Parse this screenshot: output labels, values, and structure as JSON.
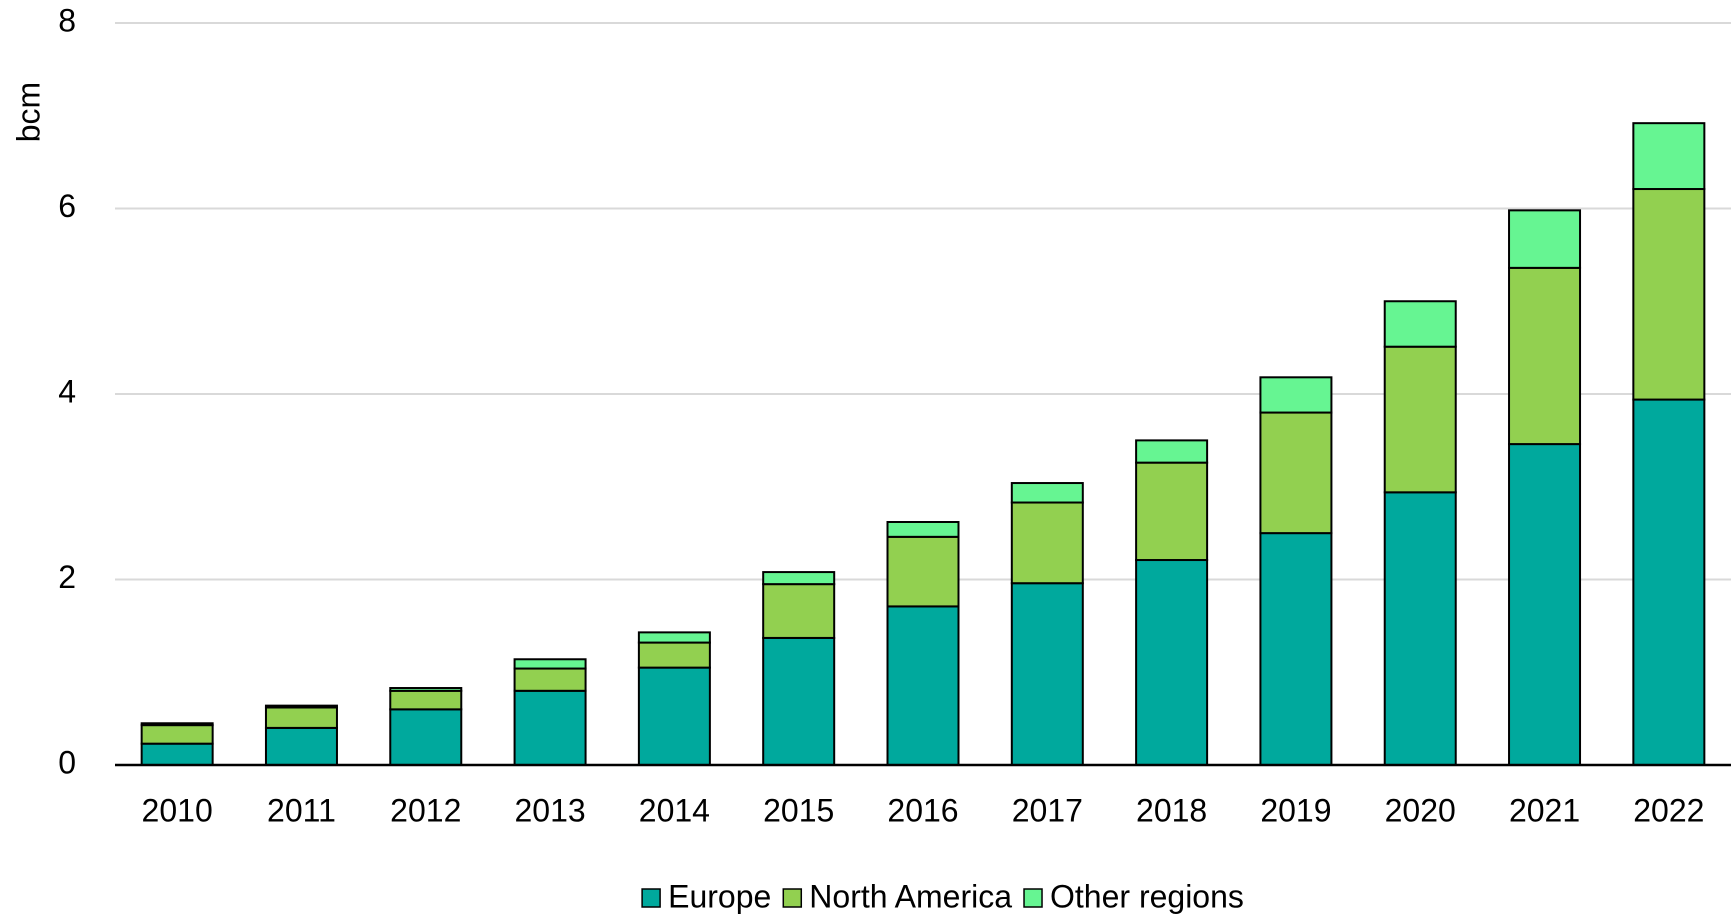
{
  "chart_data": {
    "type": "stacked_bar",
    "y_label": "bcm",
    "categories": [
      "2010",
      "2011",
      "2012",
      "2013",
      "2014",
      "2015",
      "2016",
      "2017",
      "2018",
      "2019",
      "2020",
      "2021",
      "2022"
    ],
    "series": [
      {
        "name": "Europe",
        "color": "#00a99d",
        "values": [
          0.23,
          0.4,
          0.6,
          0.8,
          1.05,
          1.37,
          1.71,
          1.96,
          2.21,
          2.5,
          2.94,
          3.46,
          3.94
        ]
      },
      {
        "name": "North America",
        "color": "#92d050",
        "values": [
          0.2,
          0.22,
          0.2,
          0.24,
          0.27,
          0.58,
          0.75,
          0.87,
          1.05,
          1.3,
          1.57,
          1.9,
          2.27
        ]
      },
      {
        "name": "Other regions",
        "color": "#66f592",
        "values": [
          0.02,
          0.02,
          0.03,
          0.1,
          0.11,
          0.13,
          0.16,
          0.21,
          0.24,
          0.38,
          0.49,
          0.62,
          0.71
        ]
      }
    ],
    "ylim": [
      0,
      8
    ],
    "yticks": [
      0,
      2,
      4,
      6,
      8
    ],
    "grid": true,
    "legend": "bottom"
  }
}
